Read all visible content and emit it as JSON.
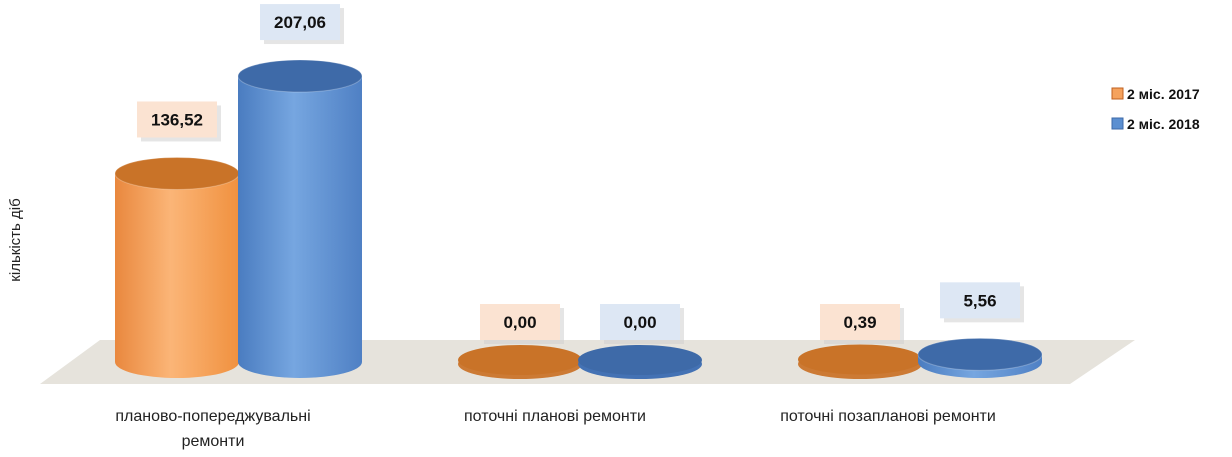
{
  "chart_data": {
    "type": "bar",
    "title": "",
    "categories": [
      "планово-попереджувальні ремонти",
      "поточні планові ремонти",
      "поточні позапланові ремонти"
    ],
    "category_lines": [
      [
        "планово-попереджувальні",
        "ремонти"
      ],
      [
        "поточні планові ремонти"
      ],
      [
        "поточні позапланові ремонти"
      ]
    ],
    "series": [
      {
        "name": "2 міс. 2017",
        "values": [
          136.52,
          0.0,
          0.39
        ],
        "labels": [
          "136,52",
          "0,00",
          "0,39"
        ],
        "color": "#f5a25d"
      },
      {
        "name": "2 міс. 2018",
        "values": [
          207.06,
          0.0,
          5.56
        ],
        "labels": [
          "207,06",
          "0,00",
          "5,56"
        ],
        "color": "#5b8fd1"
      }
    ],
    "ylabel": "кількість діб",
    "xlabel": "",
    "ylim": [
      0,
      210
    ],
    "grid": false,
    "legend_position": "top-right",
    "style": "3d-cylinder"
  }
}
